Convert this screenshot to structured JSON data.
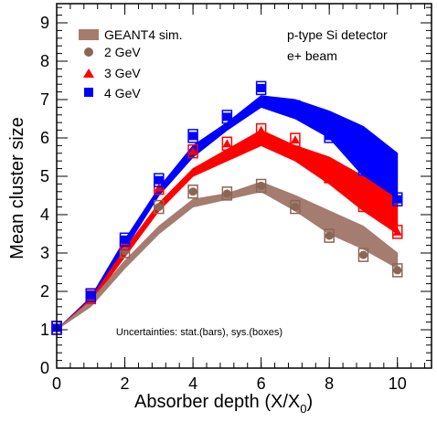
{
  "chart_data": {
    "type": "line",
    "xlabel": "Absorber depth (X/X",
    "xlabel_sub": "0",
    "xlabel_end": ")",
    "ylabel": "Mean cluster size",
    "xlim": [
      0,
      11
    ],
    "ylim": [
      0,
      9.5
    ],
    "xticks": [
      0,
      2,
      4,
      6,
      8,
      10
    ],
    "yticks": [
      0,
      1,
      2,
      3,
      4,
      5,
      6,
      7,
      8,
      9
    ],
    "grid": false,
    "legend_placement": "top-left",
    "legend_title": "GEANT4 sim.",
    "annotations": [
      "p-type Si detector",
      "e+ beam"
    ],
    "footnote": "Uncertainties: stat.(bars), sys.(boxes)",
    "sim_bands": [
      {
        "energy": "2 GeV",
        "color": "#a47d70",
        "x": [
          0,
          1,
          2,
          3,
          4,
          5,
          6,
          7,
          8,
          9,
          10
        ],
        "lo": [
          1.0,
          1.6,
          2.6,
          3.5,
          4.2,
          4.4,
          4.6,
          4.1,
          3.5,
          3.1,
          2.6
        ],
        "hi": [
          1.0,
          1.75,
          2.8,
          3.7,
          4.4,
          4.55,
          4.85,
          4.5,
          4.1,
          3.7,
          3.0
        ]
      },
      {
        "energy": "3 GeV",
        "color": "#ff0000",
        "x": [
          0,
          1,
          2,
          3,
          4,
          5,
          6,
          7,
          8,
          9,
          10
        ],
        "lo": [
          1.0,
          1.7,
          2.9,
          4.1,
          5.0,
          5.4,
          5.8,
          5.4,
          4.8,
          4.1,
          3.5
        ],
        "hi": [
          1.0,
          1.8,
          3.1,
          4.3,
          5.2,
          5.7,
          6.2,
          5.8,
          5.5,
          5.0,
          4.4
        ]
      },
      {
        "energy": "4 GeV",
        "color": "#0000ff",
        "x": [
          0,
          1,
          2,
          3,
          4,
          5,
          6,
          7,
          8,
          9,
          10
        ],
        "lo": [
          1.0,
          1.75,
          3.1,
          4.5,
          5.5,
          6.2,
          6.8,
          6.5,
          6.0,
          5.0,
          4.2
        ],
        "hi": [
          1.0,
          1.85,
          3.35,
          4.7,
          5.8,
          6.4,
          7.1,
          7.0,
          6.7,
          6.3,
          5.6
        ]
      }
    ],
    "data_series": [
      {
        "energy": "2 GeV",
        "color": "#8b6654",
        "marker": "circle",
        "x": [
          0,
          1,
          2,
          3,
          4,
          5,
          6,
          7,
          8,
          9,
          10
        ],
        "y": [
          1.05,
          1.85,
          3.05,
          4.2,
          4.6,
          4.55,
          4.75,
          4.2,
          3.45,
          2.95,
          2.55
        ]
      },
      {
        "energy": "3 GeV",
        "color": "#ff0000",
        "marker": "triangle",
        "x": [
          0,
          1,
          2,
          3,
          4,
          5,
          6,
          7,
          8,
          9,
          10
        ],
        "y": [
          1.05,
          1.85,
          3.25,
          4.7,
          5.65,
          5.85,
          6.2,
          5.95,
          5.0,
          4.25,
          3.55
        ]
      },
      {
        "energy": "4 GeV",
        "color": "#0000ff",
        "marker": "square",
        "x": [
          0,
          1,
          2,
          3,
          4,
          5,
          6,
          7,
          8,
          9,
          10
        ],
        "y": [
          1.05,
          1.9,
          3.35,
          4.9,
          6.05,
          6.55,
          7.3,
          6.8,
          6.05,
          5.2,
          4.4
        ]
      }
    ]
  }
}
